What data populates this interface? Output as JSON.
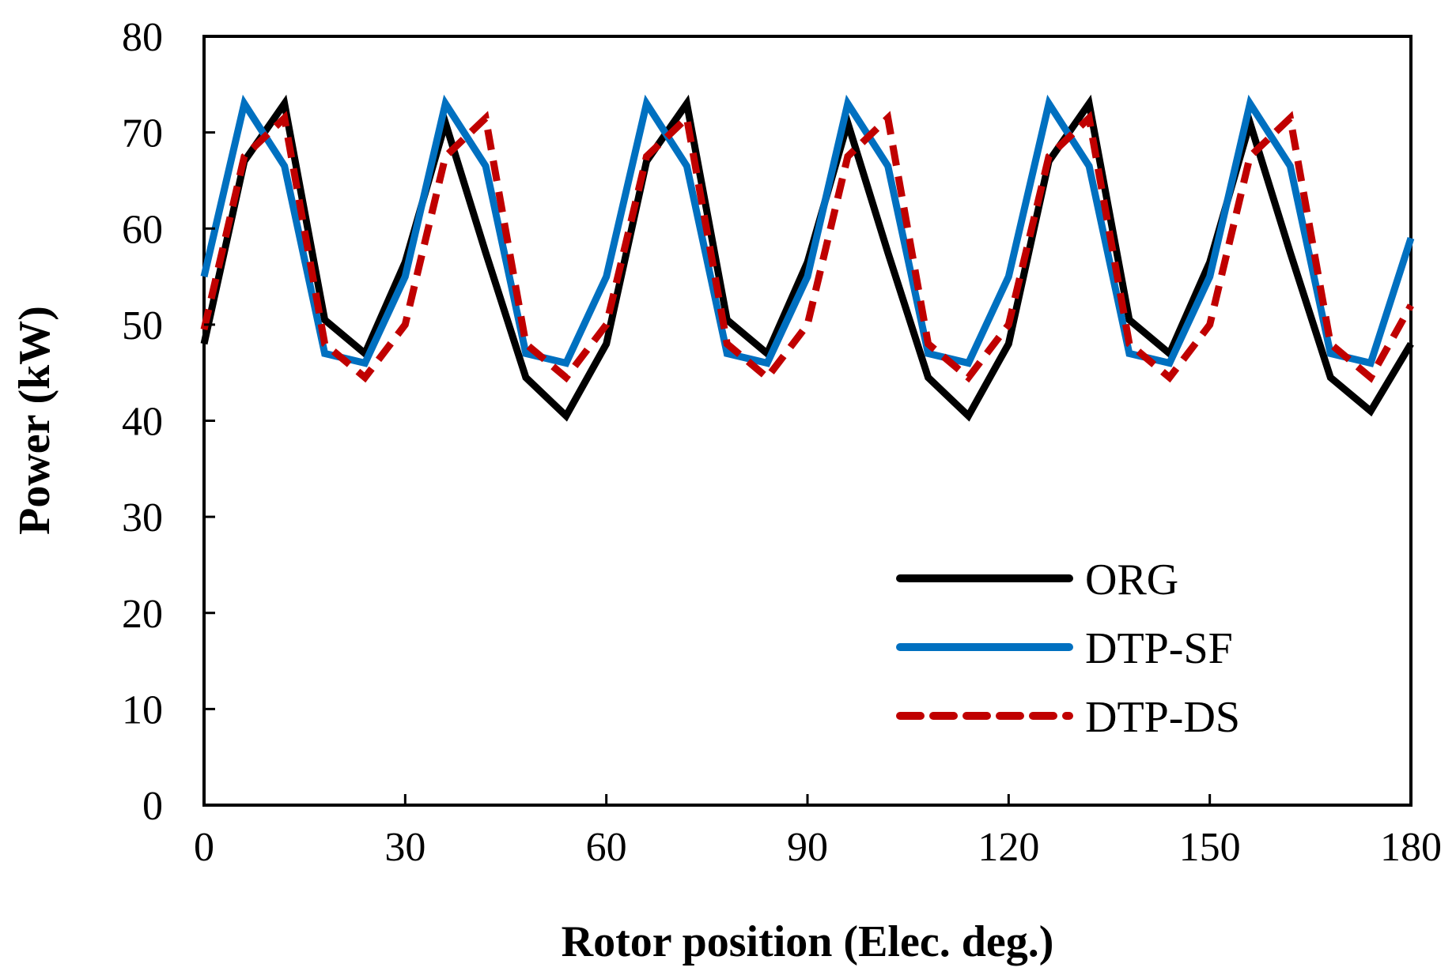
{
  "chart_data": {
    "type": "line",
    "title": "",
    "xlabel": "Rotor position (Elec. deg.)",
    "ylabel": "Power (kW)",
    "xlim": [
      0,
      180
    ],
    "ylim": [
      0,
      80
    ],
    "xticks": [
      0,
      30,
      60,
      90,
      120,
      150,
      180
    ],
    "yticks": [
      0,
      10,
      20,
      30,
      40,
      50,
      60,
      70,
      80
    ],
    "grid": false,
    "legend_position": "bottom-right",
    "x": [
      0,
      6,
      12,
      18,
      24,
      30,
      36,
      42,
      48,
      54,
      60,
      66,
      72,
      78,
      84,
      90,
      96,
      102,
      108,
      114,
      120,
      126,
      132,
      138,
      144,
      150,
      156,
      162,
      168,
      174,
      180
    ],
    "series": [
      {
        "name": "ORG",
        "color": "#000000",
        "dash": "solid",
        "values": [
          48,
          67,
          73,
          50.5,
          47,
          56.5,
          71,
          57.5,
          44.5,
          40.5,
          48,
          67,
          73,
          50.5,
          47,
          56.5,
          71,
          57.5,
          44.5,
          40.5,
          48,
          67,
          73,
          50.5,
          47,
          56.5,
          71,
          57.5,
          44.5,
          41,
          48
        ]
      },
      {
        "name": "DTP-SF",
        "color": "#0070C0",
        "dash": "solid",
        "values": [
          55,
          73,
          66.5,
          47,
          46,
          55,
          73,
          66.5,
          47,
          46,
          55,
          73,
          66.5,
          47,
          46,
          55,
          73,
          66.5,
          47,
          46,
          55,
          73,
          66.5,
          47,
          46,
          55,
          73,
          66.5,
          47,
          46,
          59
        ]
      },
      {
        "name": "DTP-DS",
        "color": "#C00000",
        "dash": "dashed",
        "values": [
          49.5,
          67.5,
          71.5,
          48,
          44.5,
          50,
          67.5,
          71.5,
          48,
          44.5,
          50,
          67.5,
          71.5,
          48,
          44.5,
          50,
          67.5,
          71.5,
          48,
          44.5,
          50,
          67.5,
          71.5,
          48,
          44.5,
          50,
          67.5,
          71.5,
          48,
          44.5,
          52
        ]
      }
    ]
  }
}
